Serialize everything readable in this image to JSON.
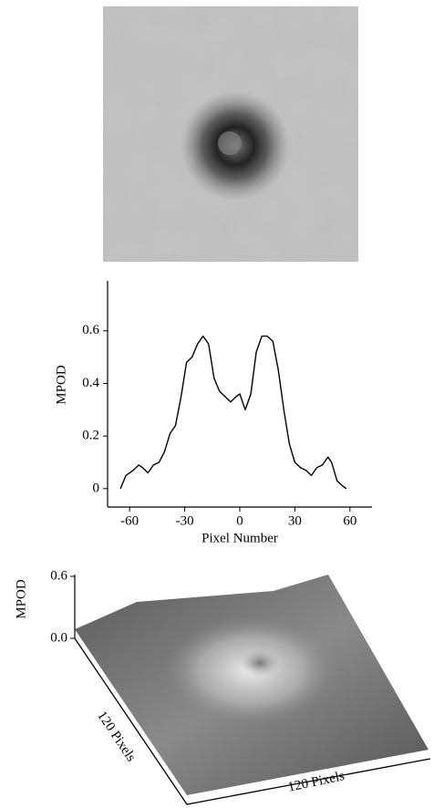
{
  "chart_data": [
    {
      "type": "line",
      "xlabel": "Pixel Number",
      "ylabel": "MPOD",
      "x": [
        -65,
        -62,
        -58,
        -55,
        -53,
        -50,
        -47,
        -44,
        -41,
        -38,
        -35,
        -32,
        -29,
        -26,
        -23,
        -20,
        -17,
        -14,
        -11,
        -8,
        -5,
        -2,
        0,
        3,
        6,
        9,
        12,
        15,
        18,
        21,
        24,
        27,
        30,
        33,
        36,
        39,
        42,
        45,
        48,
        50,
        53,
        56,
        58
      ],
      "values": [
        0.0,
        0.05,
        0.07,
        0.09,
        0.08,
        0.06,
        0.09,
        0.1,
        0.14,
        0.21,
        0.24,
        0.35,
        0.48,
        0.5,
        0.55,
        0.58,
        0.55,
        0.42,
        0.37,
        0.35,
        0.33,
        0.35,
        0.36,
        0.3,
        0.36,
        0.52,
        0.58,
        0.58,
        0.56,
        0.45,
        0.3,
        0.17,
        0.1,
        0.08,
        0.07,
        0.05,
        0.08,
        0.09,
        0.12,
        0.1,
        0.03,
        0.01,
        0.0
      ],
      "color": "#000000",
      "xlim": [
        -72,
        72
      ],
      "ylim": [
        -0.07,
        0.79
      ],
      "xticks": [
        -60,
        -30,
        0,
        30,
        60
      ],
      "yticks": [
        0,
        0.2,
        0.4,
        0.6
      ]
    },
    {
      "type": "surface",
      "zlabel": "MPOD",
      "xlabel": "120 Pixels",
      "ylabel": "120 Pixels",
      "zlim": [
        0,
        0.6
      ],
      "zticks": [
        {
          "value": 0,
          "label": "0.0"
        },
        0.6
      ]
    }
  ]
}
